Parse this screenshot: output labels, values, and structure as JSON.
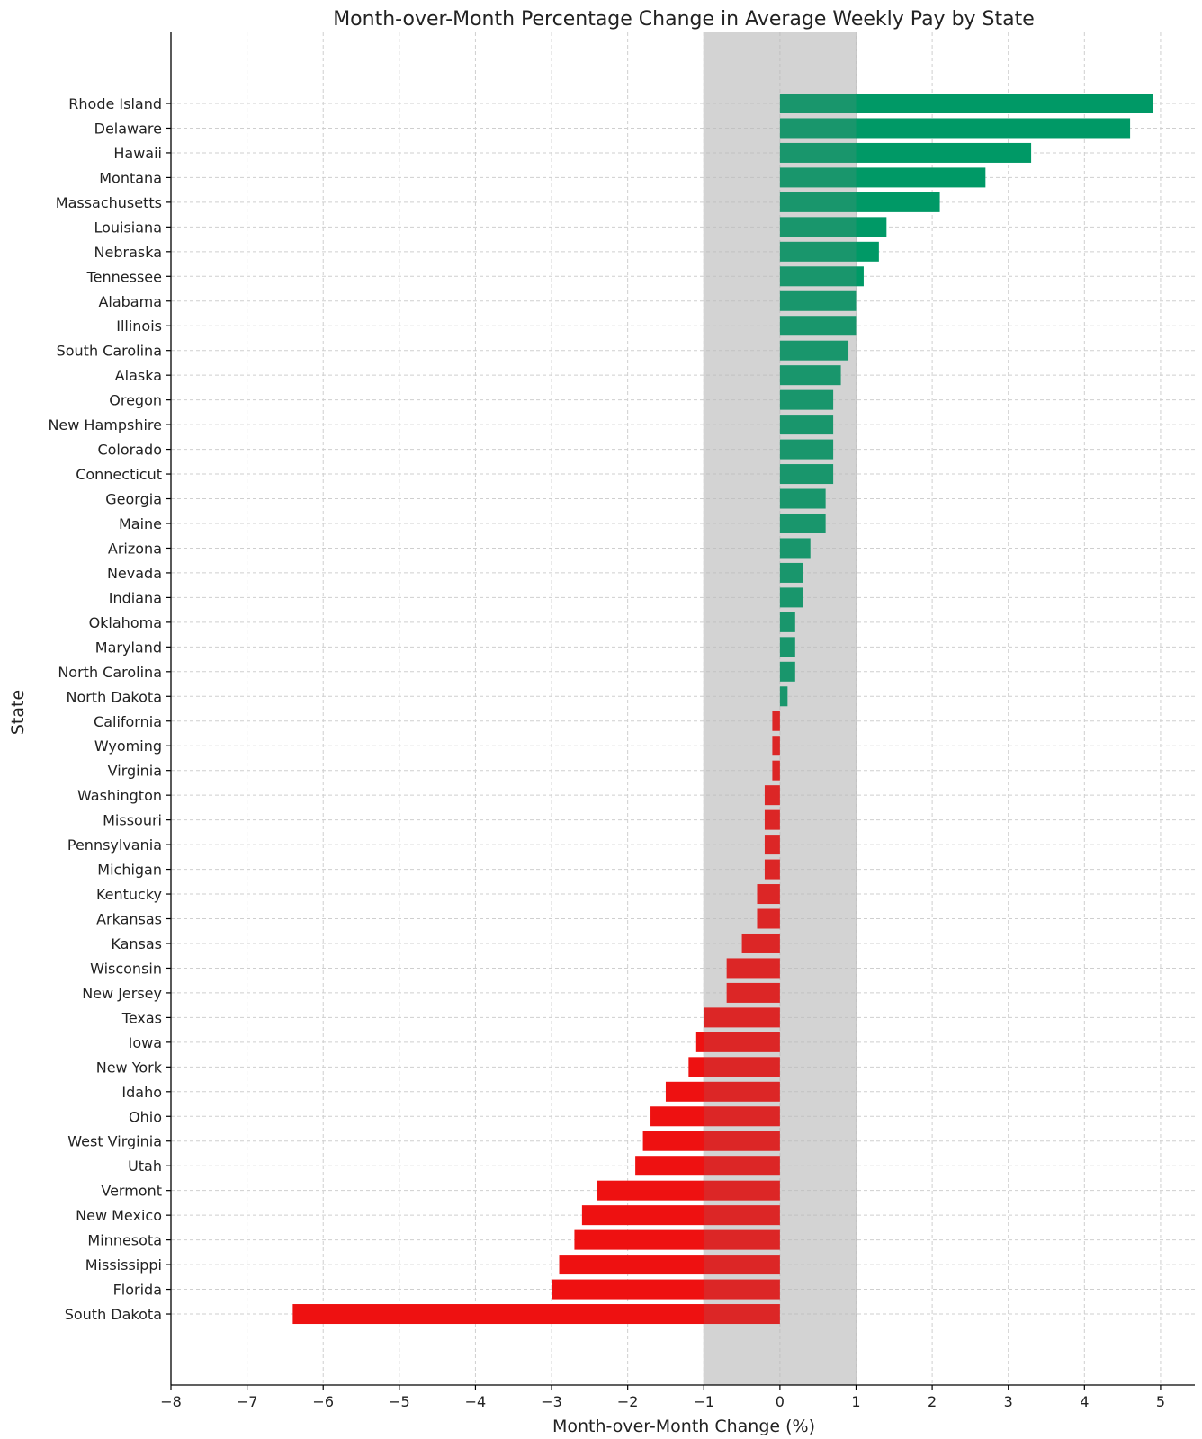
{
  "chart_data": {
    "type": "bar",
    "orientation": "horizontal",
    "title": "Month-over-Month Percentage Change in Average Weekly Pay by State",
    "xlabel": "Month-over-Month Change (%)",
    "ylabel": "State",
    "xlim": [
      -8,
      5.45
    ],
    "xticks": [
      -8,
      -7,
      -6,
      -5,
      -4,
      -3,
      -2,
      -1,
      0,
      1,
      2,
      3,
      4,
      5
    ],
    "xtick_labels": [
      "−8",
      "−7",
      "−6",
      "−5",
      "−4",
      "−3",
      "−2",
      "−1",
      "0",
      "1",
      "2",
      "3",
      "4",
      "5"
    ],
    "grid": true,
    "shaded_band": [
      -1,
      1
    ],
    "colors": {
      "positive": "#009966",
      "negative": "#ee1111",
      "band": "#e3e3e3"
    },
    "categories": [
      "Rhode Island",
      "Delaware",
      "Hawaii",
      "Montana",
      "Massachusetts",
      "Louisiana",
      "Nebraska",
      "Tennessee",
      "Alabama",
      "Illinois",
      "South Carolina",
      "Alaska",
      "Oregon",
      "New Hampshire",
      "Colorado",
      "Connecticut",
      "Georgia",
      "Maine",
      "Arizona",
      "Nevada",
      "Indiana",
      "Oklahoma",
      "Maryland",
      "North Carolina",
      "North Dakota",
      "California",
      "Wyoming",
      "Virginia",
      "Washington",
      "Missouri",
      "Pennsylvania",
      "Michigan",
      "Kentucky",
      "Arkansas",
      "Kansas",
      "Wisconsin",
      "New Jersey",
      "Texas",
      "Iowa",
      "New York",
      "Idaho",
      "Ohio",
      "West Virginia",
      "Utah",
      "Vermont",
      "New Mexico",
      "Minnesota",
      "Mississippi",
      "Florida",
      "South Dakota"
    ],
    "values": [
      4.9,
      4.6,
      3.3,
      2.7,
      2.1,
      1.4,
      1.3,
      1.1,
      1.0,
      1.0,
      0.9,
      0.8,
      0.7,
      0.7,
      0.7,
      0.7,
      0.6,
      0.6,
      0.4,
      0.3,
      0.3,
      0.2,
      0.2,
      0.2,
      0.1,
      -0.1,
      -0.1,
      -0.1,
      -0.2,
      -0.2,
      -0.2,
      -0.2,
      -0.3,
      -0.3,
      -0.5,
      -0.7,
      -0.7,
      -1.0,
      -1.1,
      -1.2,
      -1.5,
      -1.7,
      -1.8,
      -1.9,
      -2.4,
      -2.6,
      -2.7,
      -2.9,
      -3.0,
      -6.4
    ]
  }
}
